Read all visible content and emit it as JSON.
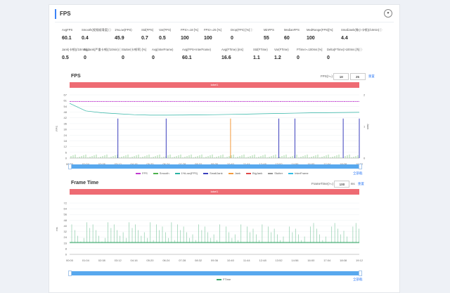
{
  "panel": {
    "title": "FPS"
  },
  "stats_row1": [
    {
      "label": "AvgFPS",
      "value": "60.1"
    },
    {
      "label": "Smooth(视频顺滑度)ⓘ",
      "value": "0.4"
    },
    {
      "label": "1%Low(FPS)",
      "value": "45.9"
    },
    {
      "label": "Std(FPS)",
      "value": "0.7"
    },
    {
      "label": "Var(FPS)",
      "value": "0.5"
    },
    {
      "label": "FPS>=18 [%]",
      "value": "100"
    },
    {
      "label": "FPS>=25 [%]",
      "value": "100"
    },
    {
      "label": "Drop(FPS) [%]ⓘ",
      "value": "0"
    },
    {
      "label": "MinFPS",
      "value": "55"
    },
    {
      "label": "MedianFPS",
      "value": "60"
    },
    {
      "label": "MedRange(FPS)[%]",
      "value": "100"
    },
    {
      "label": "SmallJank(微小卡顿)(/10min)ⓘ",
      "value": "4.4"
    }
  ],
  "stats_row2": [
    {
      "label": "Jank(卡顿)(/10min)ⓘ",
      "value": "0.5"
    },
    {
      "label": "BigJank(严重卡顿)(/10min)ⓘ",
      "value": "0"
    },
    {
      "label": "Stutter(卡顿率) [%]",
      "value": "0"
    },
    {
      "label": "Avg(InterFrame)",
      "value": "0"
    },
    {
      "label": "Avg(FPS+InterFrame)",
      "value": "60.1"
    },
    {
      "label": "Avg(FTime) [ms]",
      "value": "16.6"
    },
    {
      "label": "Std(FTime)",
      "value": "1.1"
    },
    {
      "label": "Var(FTime)",
      "value": "1.2"
    },
    {
      "label": "FTime>=100ms [%]",
      "value": "0"
    },
    {
      "label": "Delta(FTime)>100ms [/h]ⓘ",
      "value": "0"
    }
  ],
  "fps_chart": {
    "title": "FPS",
    "control_label": "FPS(>=)",
    "threshold1": "18",
    "threshold2": "25",
    "reset_label": "重置",
    "banner": "label1",
    "fullscreen_label": "全部截",
    "legend": [
      {
        "name": "FPS",
        "color": "#c13bd0"
      },
      {
        "name": "Smooth",
        "color": "#4db24d"
      },
      {
        "name": "1%Low(FPS)",
        "color": "#2bb3a3"
      },
      {
        "name": "SmallJank",
        "color": "#3b3fbd"
      },
      {
        "name": "Jank",
        "color": "#f39a3d"
      },
      {
        "name": "BigJank",
        "color": "#e04848"
      },
      {
        "name": "Stutter",
        "color": "#9a9a9a"
      },
      {
        "name": "InterFrame",
        "color": "#33bde6"
      }
    ]
  },
  "ftime_chart": {
    "title": "Frame Time",
    "control_label": "FrameTime(>=)",
    "threshold": "100",
    "unit": "ms",
    "reset_label": "重置",
    "banner": "label1",
    "fullscreen_label": "全部截",
    "legend": [
      {
        "name": "FTime",
        "color": "#3aa86a"
      }
    ]
  },
  "chart_data": [
    {
      "type": "line",
      "title": "FPS",
      "ylabel": "FPS",
      "y2label": "Jank",
      "ylim": [
        0,
        67
      ],
      "y2lim": [
        0,
        2
      ],
      "yticks": [
        "67",
        "61",
        "54",
        "48",
        "42",
        "36",
        "30",
        "24",
        "18",
        "12",
        "6",
        "0"
      ],
      "y2ticks": [
        "2",
        "1",
        "0"
      ],
      "xticks": [
        "00:00",
        "01:04",
        "02:08",
        "03:12",
        "04:16",
        "05:20",
        "06:24",
        "07:28",
        "08:32",
        "09:36",
        "10:40",
        "11:44",
        "12:48",
        "13:52",
        "14:56",
        "16:00",
        "17:04",
        "18:08",
        "19:12"
      ],
      "series": [
        {
          "name": "FPS",
          "values": [
            60,
            60,
            60,
            60,
            60,
            60,
            60,
            60,
            60,
            60,
            60,
            60,
            60,
            60,
            60,
            60,
            60,
            60,
            60
          ]
        },
        {
          "name": "1%Low(FPS)",
          "values": [
            58,
            50,
            48,
            47,
            46,
            45.5,
            45.5,
            45.6,
            45.8,
            46,
            46.3,
            46.6,
            47,
            47.3,
            47.6,
            47.9,
            48.1,
            48.3,
            48.5
          ]
        },
        {
          "name": "SmallJank",
          "values": [
            0,
            0,
            0,
            1,
            0,
            0,
            1,
            0,
            0,
            0,
            0,
            0,
            0,
            1,
            1,
            0,
            0,
            1,
            1
          ]
        },
        {
          "name": "Jank",
          "values": [
            0,
            0,
            0,
            0,
            0,
            0,
            0,
            0,
            0,
            0,
            1,
            0,
            0,
            0,
            0,
            0,
            0,
            0,
            0
          ]
        }
      ]
    },
    {
      "type": "line",
      "title": "Frame Time",
      "ylabel": "ms",
      "ylim": [
        0,
        72
      ],
      "yticks": [
        "72",
        "64",
        "56",
        "48",
        "40",
        "32",
        "24",
        "16",
        "8",
        "0"
      ],
      "xticks": [
        "00:00",
        "01:04",
        "02:08",
        "03:12",
        "04:16",
        "05:20",
        "06:24",
        "07:28",
        "08:32",
        "09:36",
        "10:40",
        "11:44",
        "12:48",
        "13:52",
        "14:56",
        "16:00",
        "17:04",
        "18:08",
        "19:12"
      ],
      "series": [
        {
          "name": "FTime",
          "values": [
            16.6,
            16.6,
            16.6,
            16.6,
            16.6,
            16.6,
            16.6,
            16.6,
            16.6,
            16.6,
            16.6,
            16.6,
            16.6,
            16.6,
            16.6,
            16.6,
            16.6,
            16.6,
            16.6
          ]
        }
      ]
    }
  ]
}
